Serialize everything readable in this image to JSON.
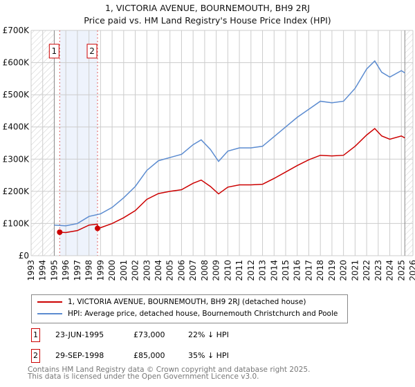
{
  "title_line1": "1, VICTORIA AVENUE, BOURNEMOUTH, BH9 2RJ",
  "title_line2": "Price paid vs. HM Land Registry's House Price Index (HPI)",
  "chart_data": {
    "type": "line",
    "title": "1, VICTORIA AVENUE, BOURNEMOUTH, BH9 2RJ — Price paid vs. HM Land Registry's House Price Index (HPI)",
    "xlim": [
      1993,
      2026
    ],
    "ylim": [
      0,
      700000
    ],
    "x_ticks": [
      "1993",
      "1994",
      "1995",
      "1996",
      "1997",
      "1998",
      "1999",
      "2000",
      "2001",
      "2002",
      "2003",
      "2004",
      "2005",
      "2006",
      "2007",
      "2008",
      "2009",
      "2010",
      "2011",
      "2012",
      "2013",
      "2014",
      "2015",
      "2016",
      "2017",
      "2018",
      "2019",
      "2020",
      "2021",
      "2022",
      "2023",
      "2024",
      "2025",
      "2026"
    ],
    "y_ticks": [
      {
        "v": 0,
        "label": "£0"
      },
      {
        "v": 100000,
        "label": "£100K"
      },
      {
        "v": 200000,
        "label": "£200K"
      },
      {
        "v": 300000,
        "label": "£300K"
      },
      {
        "v": 400000,
        "label": "£400K"
      },
      {
        "v": 500000,
        "label": "£500K"
      },
      {
        "v": 600000,
        "label": "£600K"
      },
      {
        "v": 700000,
        "label": "£700K"
      }
    ],
    "grid": true,
    "series": [
      {
        "name": "1, VICTORIA AVENUE, BOURNEMOUTH, BH9 2RJ (detached house)",
        "color": "#cc0000",
        "points": [
          [
            1995.47,
            73000
          ],
          [
            1996,
            72000
          ],
          [
            1997,
            78000
          ],
          [
            1998,
            95000
          ],
          [
            1998.72,
            98000
          ],
          [
            1998.74,
            85000
          ],
          [
            1999,
            87000
          ],
          [
            2000,
            100000
          ],
          [
            2001,
            118000
          ],
          [
            2002,
            140000
          ],
          [
            2003,
            175000
          ],
          [
            2004,
            193000
          ],
          [
            2005,
            200000
          ],
          [
            2006,
            205000
          ],
          [
            2007,
            225000
          ],
          [
            2007.7,
            235000
          ],
          [
            2008.5,
            215000
          ],
          [
            2009.2,
            192000
          ],
          [
            2010,
            213000
          ],
          [
            2011,
            220000
          ],
          [
            2012,
            220000
          ],
          [
            2013,
            222000
          ],
          [
            2014,
            240000
          ],
          [
            2015,
            260000
          ],
          [
            2016,
            280000
          ],
          [
            2017,
            298000
          ],
          [
            2018,
            312000
          ],
          [
            2019,
            310000
          ],
          [
            2020,
            312000
          ],
          [
            2021,
            340000
          ],
          [
            2022,
            375000
          ],
          [
            2022.7,
            395000
          ],
          [
            2023.3,
            372000
          ],
          [
            2024,
            362000
          ],
          [
            2025,
            372000
          ],
          [
            2025.3,
            366000
          ]
        ]
      },
      {
        "name": "HPI: Average price, detached house, Bournemouth Christchurch and Poole",
        "color": "#5b8bd0",
        "points": [
          [
            1995,
            95000
          ],
          [
            1996,
            93000
          ],
          [
            1997,
            100000
          ],
          [
            1998,
            122000
          ],
          [
            1999,
            130000
          ],
          [
            2000,
            150000
          ],
          [
            2001,
            180000
          ],
          [
            2002,
            215000
          ],
          [
            2003,
            265000
          ],
          [
            2004,
            295000
          ],
          [
            2005,
            305000
          ],
          [
            2006,
            315000
          ],
          [
            2007,
            345000
          ],
          [
            2007.7,
            360000
          ],
          [
            2008.5,
            330000
          ],
          [
            2009.2,
            293000
          ],
          [
            2010,
            325000
          ],
          [
            2011,
            335000
          ],
          [
            2012,
            335000
          ],
          [
            2013,
            340000
          ],
          [
            2014,
            370000
          ],
          [
            2015,
            400000
          ],
          [
            2016,
            430000
          ],
          [
            2017,
            455000
          ],
          [
            2018,
            480000
          ],
          [
            2019,
            475000
          ],
          [
            2020,
            480000
          ],
          [
            2021,
            520000
          ],
          [
            2022,
            580000
          ],
          [
            2022.7,
            605000
          ],
          [
            2023.3,
            570000
          ],
          [
            2024,
            555000
          ],
          [
            2025,
            575000
          ],
          [
            2025.3,
            568000
          ]
        ]
      }
    ],
    "sales": [
      {
        "label": "1",
        "x": 1995.47,
        "y": 73000
      },
      {
        "label": "2",
        "x": 1998.74,
        "y": 85000
      }
    ],
    "legend": "below"
  },
  "legend": {
    "red": "1, VICTORIA AVENUE, BOURNEMOUTH, BH9 2RJ (detached house)",
    "blue": "HPI: Average price, detached house, Bournemouth Christchurch and Poole"
  },
  "table": [
    {
      "num": "1",
      "date": "23-JUN-1995",
      "price": "£73,000",
      "hpi": "22% ↓ HPI"
    },
    {
      "num": "2",
      "date": "29-SEP-1998",
      "price": "£85,000",
      "hpi": "35% ↓ HPI"
    }
  ],
  "footer": {
    "line1": "Contains HM Land Registry data © Crown copyright and database right 2025.",
    "line2": "This data is licensed under the Open Government Licence v3.0."
  }
}
